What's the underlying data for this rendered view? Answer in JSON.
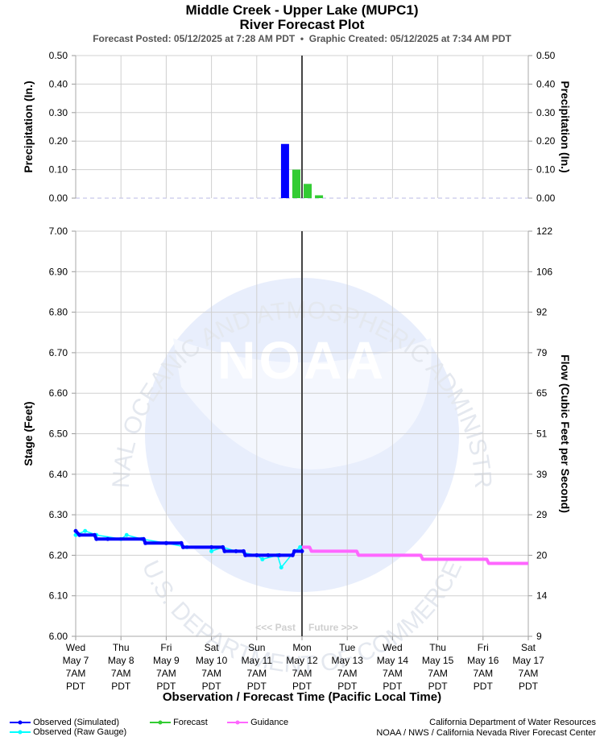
{
  "header": {
    "title": "Middle Creek - Upper Lake (MUPC1)",
    "subtitle": "River Forecast Plot",
    "posted_label": "Forecast Posted:",
    "posted_value": "05/12/2025 at 7:28 AM PDT",
    "separator": "•",
    "created_label": "Graphic Created:",
    "created_value": "05/12/2025 at 7:34 AM PDT"
  },
  "watermark": {
    "logo_text": "NOAA",
    "ring_top": "NATIONAL OCEANIC AND ATMOSPHERIC ADMINISTRATION",
    "ring_bottom": "U.S. DEPARTMENT OF COMMERCE"
  },
  "chart_data": [
    {
      "type": "bar",
      "panel": "precipitation",
      "ylabel_left": "Precipitation (In.)",
      "ylabel_right": "Precipitation (In.)",
      "ylim": [
        0,
        0.5
      ],
      "yticks": [
        "0.50",
        "0.40",
        "0.30",
        "0.20",
        "0.10",
        "0.00"
      ],
      "grid": true,
      "series": [
        {
          "name": "Observed",
          "color": "#0000ff",
          "bars": [
            {
              "time": "2025-05-11 22:00",
              "value": 0.19
            }
          ]
        },
        {
          "name": "Forecast",
          "color": "#33cc33",
          "bars": [
            {
              "time": "2025-05-12 04:00",
              "value": 0.1
            },
            {
              "time": "2025-05-12 10:00",
              "value": 0.05
            },
            {
              "time": "2025-05-12 16:00",
              "value": 0.01
            }
          ]
        }
      ]
    },
    {
      "type": "line",
      "panel": "stage",
      "ylabel_left": "Stage (Feet)",
      "ylabel_right": "Flow (Cubic Feet per Second)",
      "xlabel": "Observation / Forecast Time (Pacific Local Time)",
      "ylim": [
        6.0,
        7.0
      ],
      "yticks_left": [
        "7.00",
        "6.90",
        "6.80",
        "6.70",
        "6.60",
        "6.50",
        "6.40",
        "6.30",
        "6.20",
        "6.10",
        "6.00"
      ],
      "yticks_right": [
        "122",
        "106",
        "92",
        "79",
        "65",
        "51",
        "39",
        "29",
        "20",
        "14",
        "9"
      ],
      "xlim": [
        "2025-05-07 07:00",
        "2025-05-17 07:00"
      ],
      "xticks": [
        {
          "day": "Wed",
          "date": "May 7",
          "hour": "7AM",
          "tz": "PDT"
        },
        {
          "day": "Thu",
          "date": "May 8",
          "hour": "7AM",
          "tz": "PDT"
        },
        {
          "day": "Fri",
          "date": "May 9",
          "hour": "7AM",
          "tz": "PDT"
        },
        {
          "day": "Sat",
          "date": "May 10",
          "hour": "7AM",
          "tz": "PDT"
        },
        {
          "day": "Sun",
          "date": "May 11",
          "hour": "7AM",
          "tz": "PDT"
        },
        {
          "day": "Mon",
          "date": "May 12",
          "hour": "7AM",
          "tz": "PDT"
        },
        {
          "day": "Tue",
          "date": "May 13",
          "hour": "7AM",
          "tz": "PDT"
        },
        {
          "day": "Wed",
          "date": "May 14",
          "hour": "7AM",
          "tz": "PDT"
        },
        {
          "day": "Thu",
          "date": "May 15",
          "hour": "7AM",
          "tz": "PDT"
        },
        {
          "day": "Fri",
          "date": "May 16",
          "hour": "7AM",
          "tz": "PDT"
        },
        {
          "day": "Sat",
          "date": "May 17",
          "hour": "7AM",
          "tz": "PDT"
        }
      ],
      "grid": true,
      "now_line": "2025-05-12 07:00",
      "past_label": "<<< Past",
      "future_label": "Future >>>",
      "series": [
        {
          "name": "Observed (Simulated)",
          "color": "#0000ff",
          "points": [
            [
              "2025-05-07 07:00",
              6.26
            ],
            [
              "2025-05-07 09:00",
              6.25
            ],
            [
              "2025-05-07 17:00",
              6.25
            ],
            [
              "2025-05-07 18:00",
              6.24
            ],
            [
              "2025-05-08 00:00",
              6.24
            ],
            [
              "2025-05-08 19:00",
              6.24
            ],
            [
              "2025-05-08 20:00",
              6.23
            ],
            [
              "2025-05-09 07:00",
              6.23
            ],
            [
              "2025-05-09 15:00",
              6.23
            ],
            [
              "2025-05-09 16:00",
              6.22
            ],
            [
              "2025-05-10 07:00",
              6.22
            ],
            [
              "2025-05-10 13:00",
              6.22
            ],
            [
              "2025-05-10 14:00",
              6.21
            ],
            [
              "2025-05-10 20:00",
              6.21
            ],
            [
              "2025-05-11 00:00",
              6.21
            ],
            [
              "2025-05-11 01:00",
              6.2
            ],
            [
              "2025-05-11 07:00",
              6.2
            ],
            [
              "2025-05-11 13:00",
              6.2
            ],
            [
              "2025-05-11 19:00",
              6.2
            ],
            [
              "2025-05-12 02:00",
              6.2
            ],
            [
              "2025-05-12 03:00",
              6.21
            ],
            [
              "2025-05-12 07:00",
              6.21
            ]
          ]
        },
        {
          "name": "Observed (Raw Gauge)",
          "color": "#00ffff",
          "points": [
            [
              "2025-05-07 07:00",
              6.25
            ],
            [
              "2025-05-07 12:00",
              6.26
            ],
            [
              "2025-05-07 18:00",
              6.25
            ],
            [
              "2025-05-08 07:00",
              6.24
            ],
            [
              "2025-05-08 10:00",
              6.25
            ],
            [
              "2025-05-08 18:00",
              6.24
            ],
            [
              "2025-05-09 07:00",
              6.23
            ],
            [
              "2025-05-09 18:00",
              6.22
            ],
            [
              "2025-05-10 07:00",
              6.22
            ],
            [
              "2025-05-10 07:00",
              6.21
            ],
            [
              "2025-05-10 13:00",
              6.22
            ],
            [
              "2025-05-10 20:00",
              6.21
            ],
            [
              "2025-05-11 07:00",
              6.2
            ],
            [
              "2025-05-11 10:00",
              6.19
            ],
            [
              "2025-05-11 18:00",
              6.2
            ],
            [
              "2025-05-11 20:00",
              6.17
            ],
            [
              "2025-05-12 03:00",
              6.21
            ],
            [
              "2025-05-12 06:00",
              6.22
            ]
          ]
        },
        {
          "name": "Forecast",
          "color": "#33cc33",
          "points": []
        },
        {
          "name": "Guidance",
          "color": "#ff66ff",
          "points": [
            [
              "2025-05-12 07:00",
              6.22
            ],
            [
              "2025-05-12 11:00",
              6.22
            ],
            [
              "2025-05-12 12:00",
              6.21
            ],
            [
              "2025-05-13 07:00",
              6.21
            ],
            [
              "2025-05-13 12:00",
              6.21
            ],
            [
              "2025-05-13 13:00",
              6.2
            ],
            [
              "2025-05-14 07:00",
              6.2
            ],
            [
              "2025-05-14 22:00",
              6.2
            ],
            [
              "2025-05-14 23:00",
              6.19
            ],
            [
              "2025-05-15 07:00",
              6.19
            ],
            [
              "2025-05-16 07:00",
              6.19
            ],
            [
              "2025-05-16 09:00",
              6.19
            ],
            [
              "2025-05-16 10:00",
              6.18
            ],
            [
              "2025-05-17 07:00",
              6.18
            ]
          ]
        }
      ]
    }
  ],
  "legend": {
    "items": [
      {
        "label": "Observed (Simulated)",
        "color": "#0000ff"
      },
      {
        "label": "Observed (Raw Gauge)",
        "color": "#00ffff"
      },
      {
        "label": "Forecast",
        "color": "#33cc33"
      },
      {
        "label": "Guidance",
        "color": "#ff66ff"
      }
    ]
  },
  "credits": {
    "line1": "California Department of Water Resources",
    "line2": "NOAA / NWS / California Nevada River Forecast Center"
  }
}
